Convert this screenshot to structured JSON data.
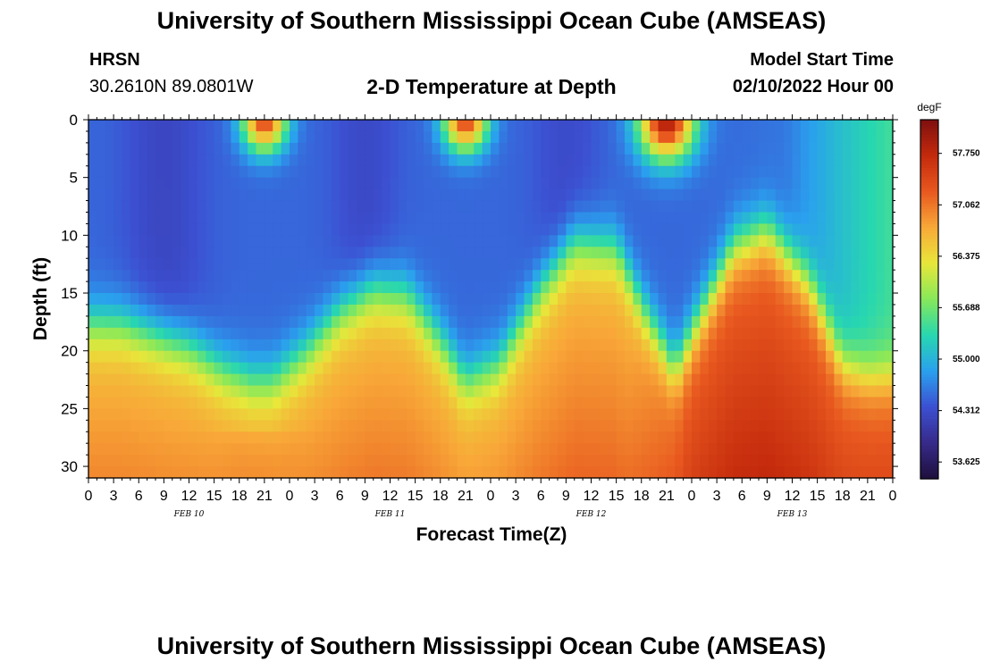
{
  "header": {
    "title": "University of Southern Mississippi Ocean Cube (AMSEAS)",
    "station": "HRSN",
    "coords": "30.2610N  89.0801W",
    "subtitle": "2-D Temperature at Depth",
    "model_label": "Model Start Time",
    "model_time": "02/10/2022 Hour 00"
  },
  "footer": {
    "title": "University of Southern Mississippi Ocean Cube (AMSEAS)"
  },
  "chart_data": {
    "type": "heatmap",
    "title": "2-D Temperature at Depth",
    "xlabel": "Forecast Time(Z)",
    "ylabel": "Depth (ft)",
    "xlim": [
      0,
      96
    ],
    "ylim": [
      0,
      31
    ],
    "x_tick_labels": [
      "0",
      "3",
      "6",
      "9",
      "12",
      "15",
      "18",
      "21",
      "0",
      "3",
      "6",
      "9",
      "12",
      "15",
      "18",
      "21",
      "0",
      "3",
      "6",
      "9",
      "12",
      "15",
      "18",
      "21",
      "0",
      "3",
      "6",
      "9",
      "12",
      "15",
      "18",
      "21",
      "0"
    ],
    "date_labels": [
      {
        "label": "FEB 10",
        "hour": 12
      },
      {
        "label": "FEB 11",
        "hour": 36
      },
      {
        "label": "FEB 12",
        "hour": 60
      },
      {
        "label": "FEB 13",
        "hour": 84
      }
    ],
    "y_ticks": [
      0,
      5,
      10,
      15,
      20,
      25,
      30
    ],
    "colorbar": {
      "unit": "degF",
      "min": 53.4,
      "max": 58.2,
      "ticks": [
        "57.750",
        "57.062",
        "56.375",
        "55.688",
        "55.000",
        "54.312",
        "53.625"
      ],
      "colors": [
        "#1e0f3c",
        "#372a8a",
        "#3c50d2",
        "#2aa0ee",
        "#27d7b0",
        "#87e85a",
        "#e8e73a",
        "#f8a838",
        "#e8581f",
        "#c42a0c",
        "#7e1010"
      ]
    },
    "warm_layer_boundary": {
      "hours": [
        0,
        4,
        8,
        12,
        16,
        19.5,
        22,
        26,
        30,
        34,
        38,
        42,
        45,
        49,
        54,
        58,
        63,
        66,
        70,
        73,
        77,
        81,
        86,
        90,
        93,
        96
      ],
      "depth_ft": [
        17.5,
        17.5,
        18.5,
        19.5,
        21.5,
        22.5,
        22.5,
        20,
        16.5,
        14.5,
        15,
        19,
        22.5,
        21,
        14.5,
        10.5,
        11,
        16,
        21.5,
        17,
        11,
        9.5,
        14,
        21,
        22,
        22
      ]
    },
    "values_note": "Temperature (degF) by forecast hour and depth; warm water (~56.5-57.8) below the boundary, cool water (~54-54.8) above, with diurnal surface warming near hours 21, 45 and 69."
  }
}
